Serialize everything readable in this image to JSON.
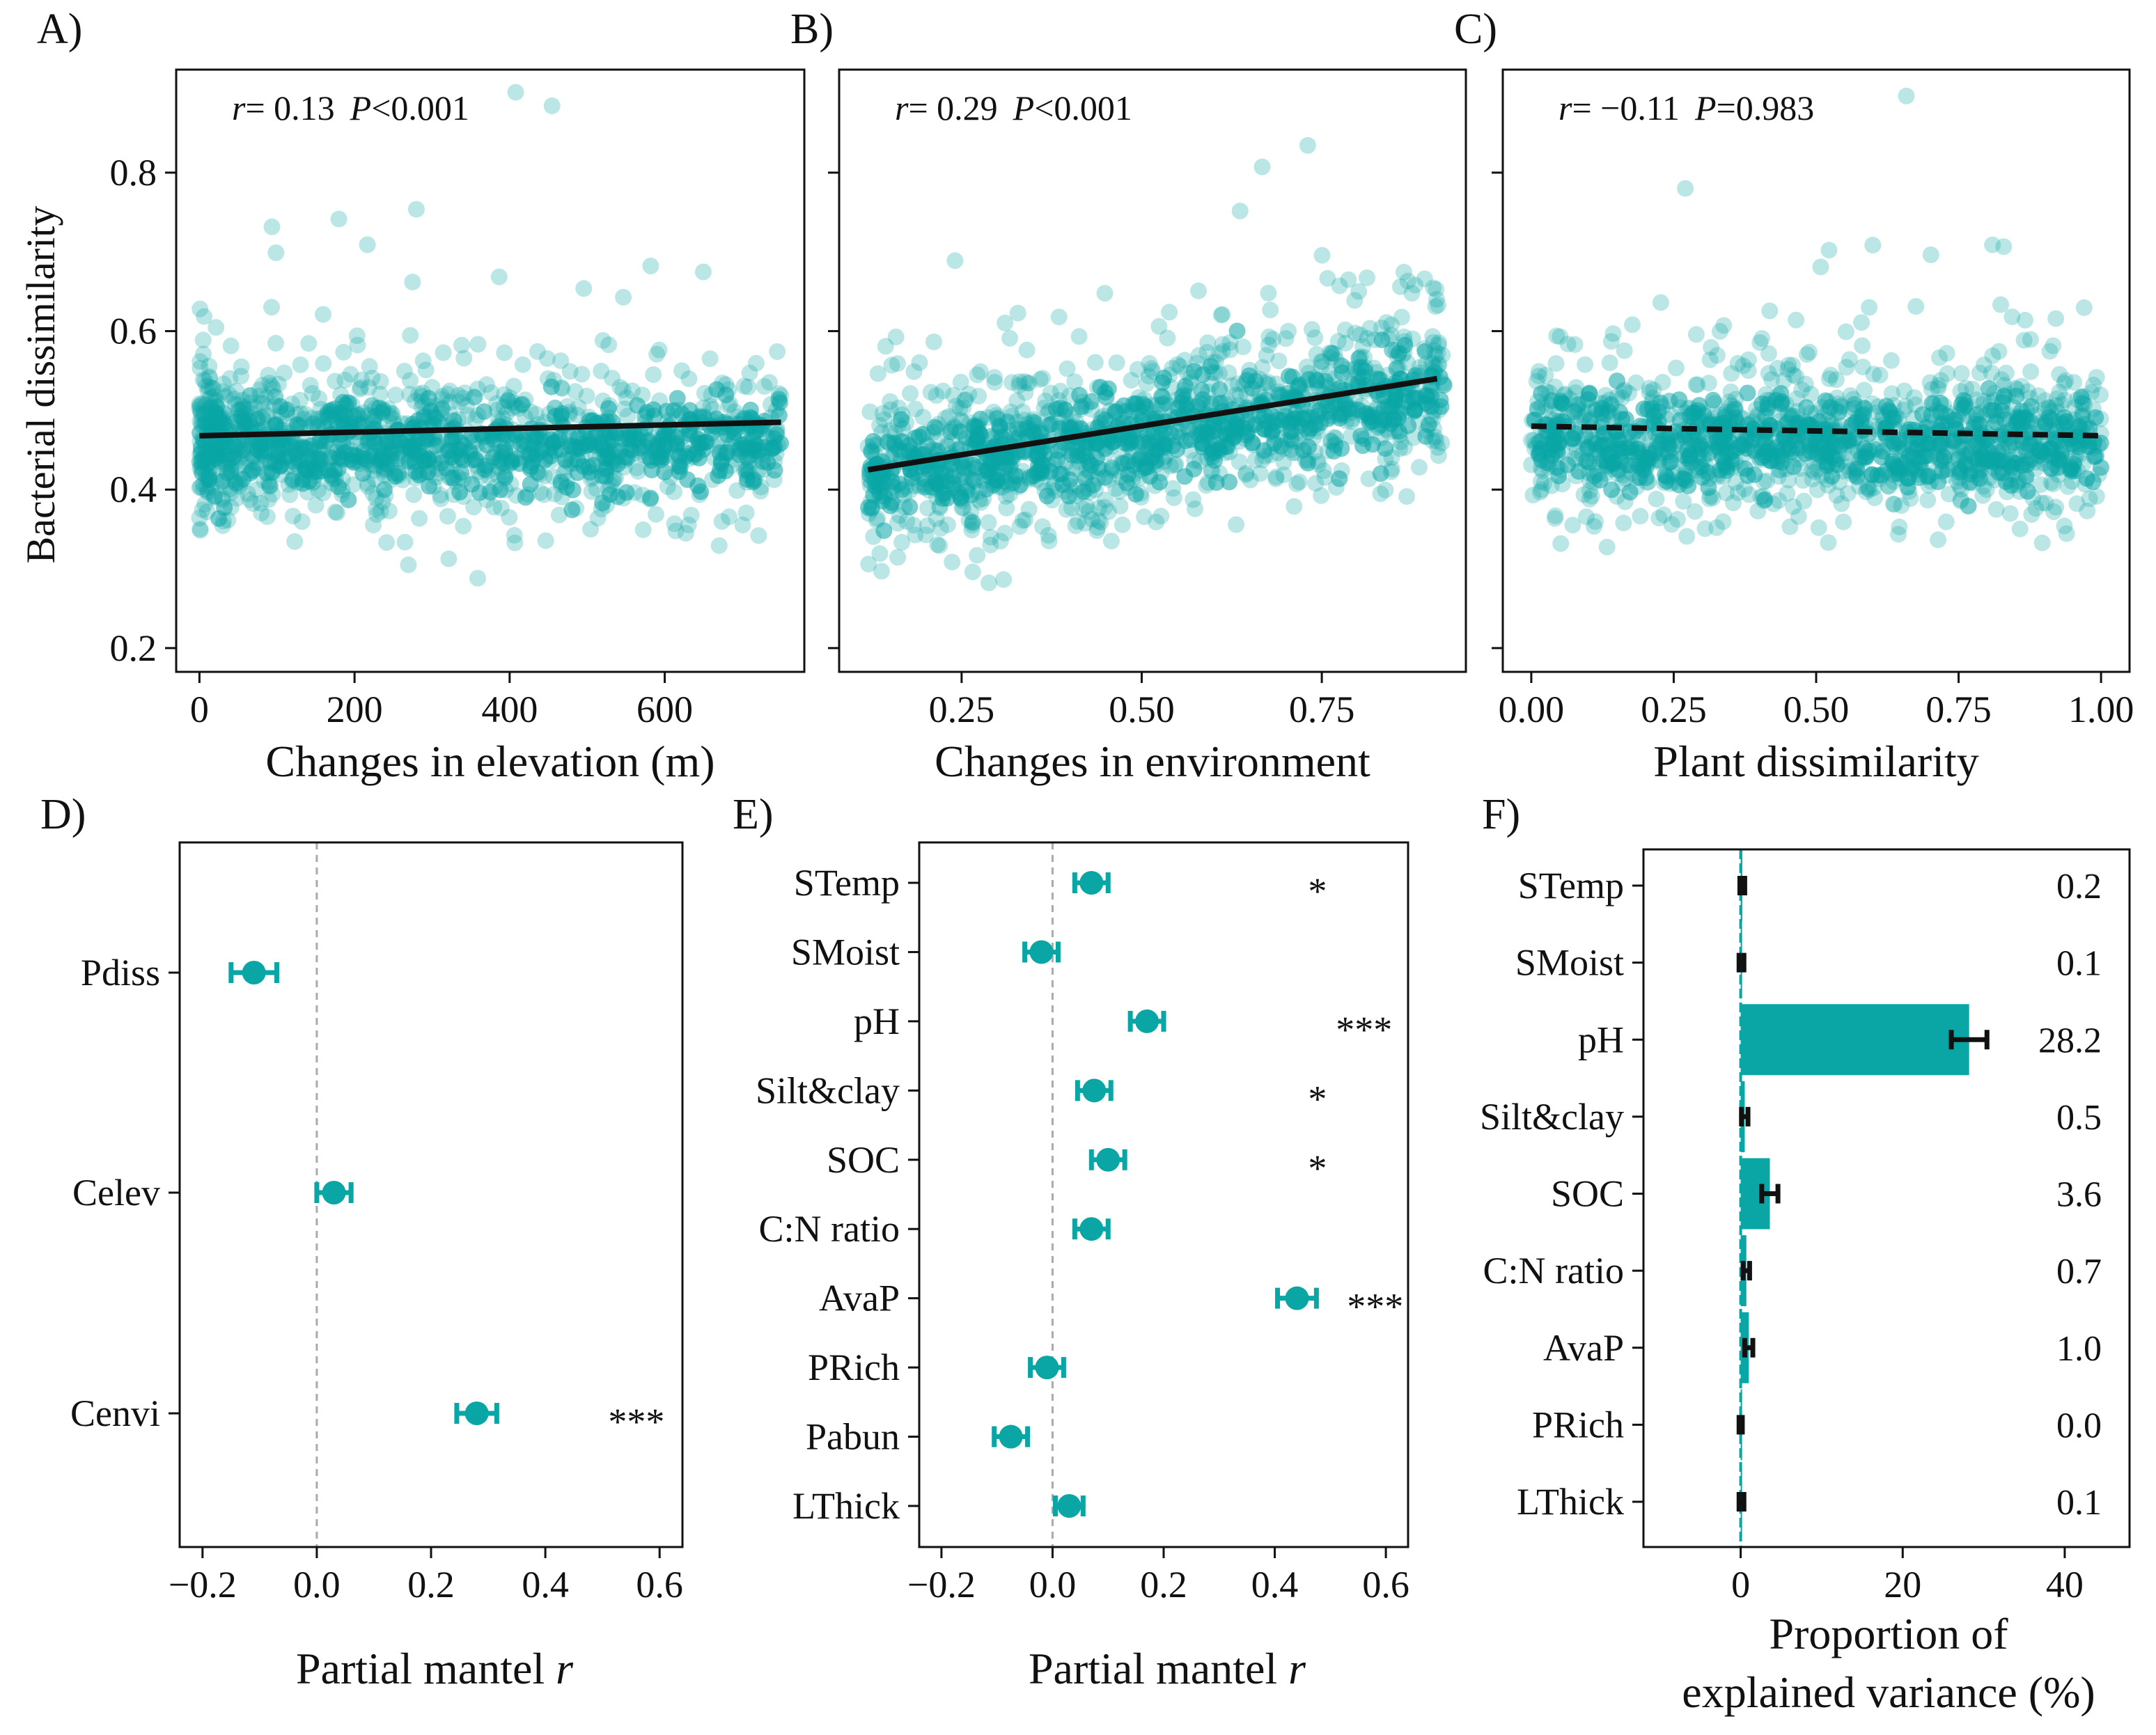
{
  "colors": {
    "teal": "#0aa5a5",
    "ink": "#111111",
    "zero_line": "#aaaaaa"
  },
  "chart_data": [
    {
      "id": "A",
      "panel_label": "A)",
      "type": "scatter",
      "stat_r_value": "= 0.13",
      "stat_p_value": "<0.001",
      "stat_r_sym": "r",
      "stat_p_sym": "P",
      "xlabel": "Changes in elevation (m)",
      "ylabel": "Bacterial dissimilarity",
      "xlim": [
        -30,
        780
      ],
      "ylim": [
        0.17,
        0.93
      ],
      "xticks": [
        0,
        200,
        400,
        600
      ],
      "xtick_labels": [
        "0",
        "200",
        "400",
        "600"
      ],
      "yticks": [
        0.2,
        0.4,
        0.6,
        0.8
      ],
      "ytick_labels": [
        "0.2",
        "0.4",
        "0.6",
        "0.8"
      ],
      "cloud": {
        "x_range": [
          0,
          750
        ],
        "center": 0.455,
        "spread": 0.05,
        "n": 900,
        "x_skew": 0.6
      },
      "trend": {
        "x": [
          0,
          750
        ],
        "y": [
          0.468,
          0.485
        ],
        "dashed": false
      }
    },
    {
      "id": "B",
      "panel_label": "B)",
      "type": "scatter",
      "stat_r_value": "= 0.29",
      "stat_p_value": "<0.001",
      "stat_r_sym": "r",
      "stat_p_sym": "P",
      "xlabel": "Changes in environment",
      "ylim": [
        0.17,
        0.93
      ],
      "xlim": [
        0.08,
        0.95
      ],
      "xticks": [
        0.25,
        0.5,
        0.75
      ],
      "xtick_labels": [
        "0.25",
        "0.50",
        "0.75"
      ],
      "yticks": [
        0.2,
        0.4,
        0.6,
        0.8
      ],
      "cloud": {
        "x_range": [
          0.12,
          0.92
        ],
        "center": 0.47,
        "spread": 0.055,
        "n": 900,
        "slope": 0.14
      },
      "trend": {
        "x": [
          0.12,
          0.91
        ],
        "y": [
          0.425,
          0.54
        ],
        "dashed": false
      }
    },
    {
      "id": "C",
      "panel_label": "C)",
      "type": "scatter",
      "stat_r_value": "= −0.11",
      "stat_p_value": "=0.983",
      "stat_r_sym": "r",
      "stat_p_sym": "P",
      "xlabel": "Plant dissimilarity",
      "ylim": [
        0.17,
        0.93
      ],
      "xlim": [
        -0.05,
        1.05
      ],
      "xticks": [
        0,
        0.25,
        0.5,
        0.75,
        1.0
      ],
      "xtick_labels": [
        "0.00",
        "0.25",
        "0.50",
        "0.75",
        "1.00"
      ],
      "yticks": [
        0.2,
        0.4,
        0.6,
        0.8
      ],
      "cloud": {
        "x_range": [
          0,
          1
        ],
        "center": 0.46,
        "spread": 0.05,
        "n": 900
      },
      "trend": {
        "x": [
          0,
          1
        ],
        "y": [
          0.48,
          0.468
        ],
        "dashed": true
      }
    },
    {
      "id": "D",
      "panel_label": "D)",
      "type": "dot-errorbar",
      "xlabel": "Partial mantel",
      "xlabel_sym": "r",
      "xlim": [
        -0.24,
        0.64
      ],
      "xticks": [
        -0.2,
        0,
        0.2,
        0.4,
        0.6
      ],
      "xtick_labels": [
        "−0.2",
        "0.0",
        "0.2",
        "0.4",
        "0.6"
      ],
      "categories": [
        "Pdiss",
        "Celev",
        "Cenvi"
      ],
      "values": [
        -0.11,
        0.03,
        0.28
      ],
      "errors": [
        0.04,
        0.03,
        0.035
      ],
      "significance": [
        "",
        "",
        "***"
      ],
      "sig_x": 0.51
    },
    {
      "id": "E",
      "panel_label": "E)",
      "type": "dot-errorbar",
      "xlabel": "Partial mantel",
      "xlabel_sym": "r",
      "xlim": [
        -0.24,
        0.64
      ],
      "xticks": [
        -0.2,
        0,
        0.2,
        0.4,
        0.6
      ],
      "xtick_labels": [
        "−0.2",
        "0.0",
        "0.2",
        "0.4",
        "0.6"
      ],
      "categories": [
        "STemp",
        "SMoist",
        "pH",
        "Silt&clay",
        "SOC",
        "C:N ratio",
        "AvaP",
        "PRich",
        "Pabun",
        "LThick"
      ],
      "values": [
        0.07,
        -0.02,
        0.17,
        0.075,
        0.1,
        0.07,
        0.44,
        -0.01,
        -0.075,
        0.03
      ],
      "errors": [
        0.03,
        0.03,
        0.03,
        0.03,
        0.03,
        0.03,
        0.035,
        0.03,
        0.03,
        0.025
      ],
      "significance": [
        "*",
        "",
        "***",
        "*",
        "*",
        "",
        "***",
        "",
        "",
        ""
      ],
      "sig_x": [
        0.46,
        0.46,
        0.51,
        0.46,
        0.46,
        0.46,
        0.53,
        0.46,
        0.46,
        0.46
      ]
    },
    {
      "id": "F",
      "panel_label": "F)",
      "type": "bar",
      "orientation": "horizontal",
      "xlabel_line1": "Proportion of",
      "xlabel_line2": "explained variance (%)",
      "xlim": [
        -12,
        48
      ],
      "xticks": [
        0,
        20,
        40
      ],
      "xtick_labels": [
        "0",
        "20",
        "40"
      ],
      "categories": [
        "STemp",
        "SMoist",
        "pH",
        "Silt&clay",
        "SOC",
        "C:N ratio",
        "AvaP",
        "PRich",
        "LThick"
      ],
      "values": [
        0.2,
        0.1,
        28.2,
        0.5,
        3.6,
        0.7,
        1.0,
        0.0,
        0.1
      ],
      "value_labels": [
        "0.2",
        "0.1",
        "28.2",
        "0.5",
        "3.6",
        "0.7",
        "1.0",
        "0.0",
        "0.1"
      ],
      "errors": [
        0.3,
        0.3,
        2.2,
        0.4,
        1.0,
        0.4,
        0.5,
        0.2,
        0.3
      ]
    }
  ]
}
